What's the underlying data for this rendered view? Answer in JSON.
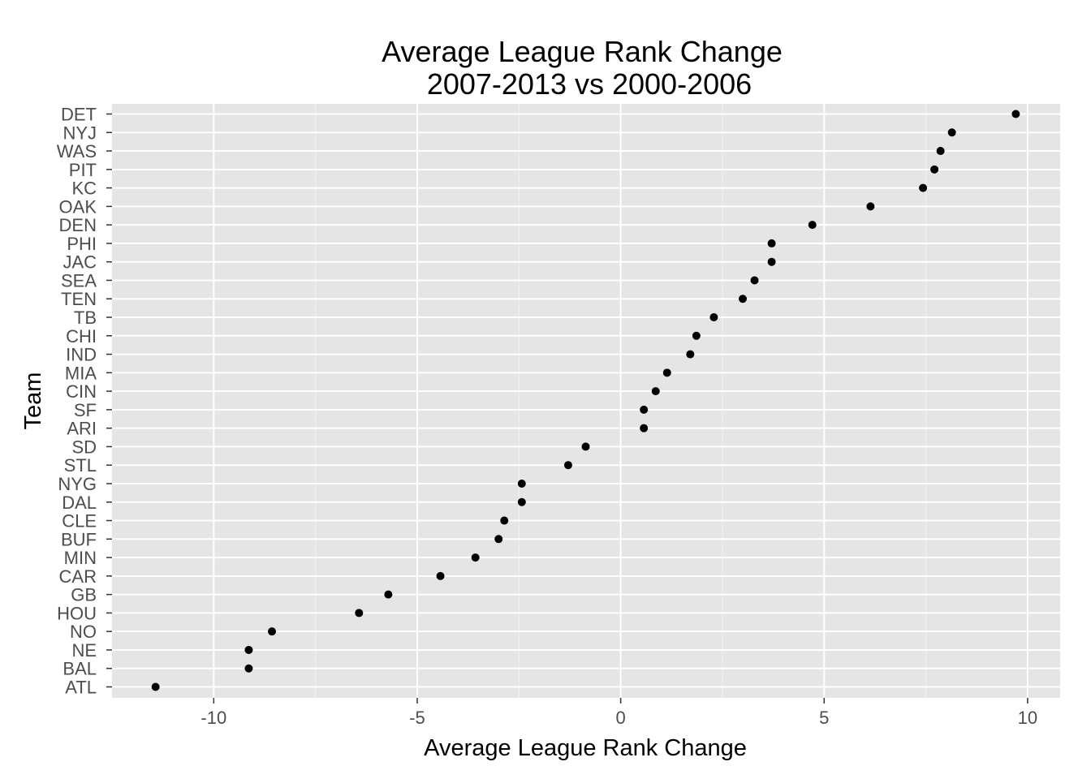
{
  "chart_data": {
    "type": "scatter",
    "title": "Average League Rank Change",
    "subtitle": "2007-2013 vs 2000-2006",
    "xlabel": "Average League Rank Change",
    "ylabel": "Team",
    "xlim": [
      -12.5,
      10.8
    ],
    "x_ticks": [
      -10,
      -5,
      0,
      5,
      10
    ],
    "x_tick_labels": [
      "-10",
      "-5",
      "0",
      "5",
      "10"
    ],
    "grid": true,
    "legend": "none",
    "colors": {
      "panel": "#e5e5e5",
      "grid_major": "#ffffff",
      "grid_minor": "#f2f2f2",
      "point": "#000000",
      "tick_label": "#4d4d4d"
    },
    "categories": [
      "ATL",
      "BAL",
      "NE",
      "NO",
      "HOU",
      "GB",
      "CAR",
      "MIN",
      "BUF",
      "CLE",
      "DAL",
      "NYG",
      "STL",
      "SD",
      "ARI",
      "SF",
      "CIN",
      "MIA",
      "IND",
      "CHI",
      "TB",
      "TEN",
      "SEA",
      "JAC",
      "PHI",
      "DEN",
      "OAK",
      "KC",
      "PIT",
      "WAS",
      "NYJ",
      "DET"
    ],
    "values": [
      -11.43,
      -9.14,
      -9.14,
      -8.57,
      -6.43,
      -5.71,
      -4.43,
      -3.57,
      -3.0,
      -2.86,
      -2.43,
      -2.43,
      -1.29,
      -0.86,
      0.57,
      0.57,
      0.86,
      1.14,
      1.71,
      1.86,
      2.29,
      3.0,
      3.29,
      3.71,
      3.71,
      4.71,
      6.14,
      7.43,
      7.71,
      7.86,
      8.14,
      9.71
    ]
  }
}
